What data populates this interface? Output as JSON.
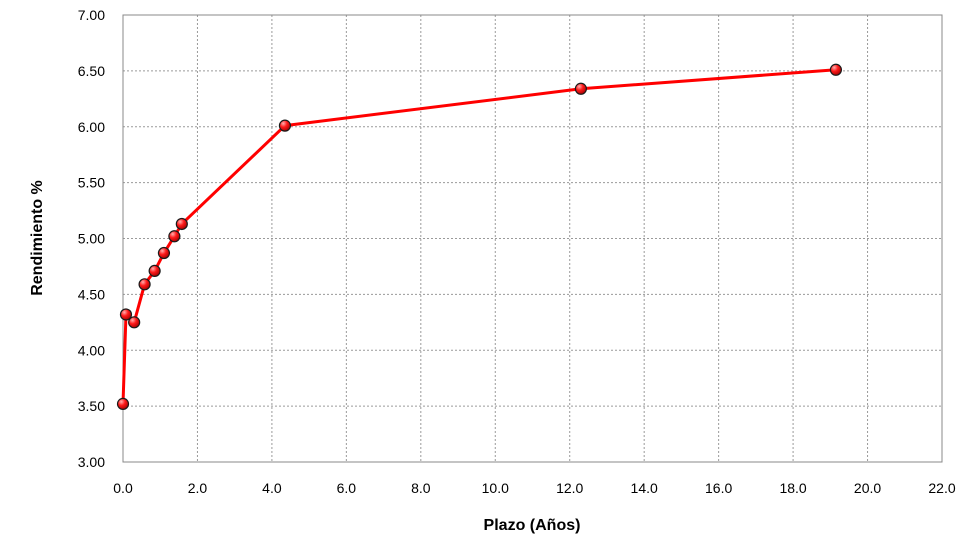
{
  "chart_data": {
    "type": "line",
    "title": "",
    "xlabel": "Plazo (Años)",
    "ylabel": "Rendimiento %",
    "xlim": [
      0,
      22
    ],
    "ylim": [
      3.0,
      7.0
    ],
    "x_ticks": [
      "0.0",
      "2.0",
      "4.0",
      "6.0",
      "8.0",
      "10.0",
      "12.0",
      "14.0",
      "16.0",
      "18.0",
      "20.0",
      "22.0"
    ],
    "y_ticks": [
      "3.00",
      "3.50",
      "4.00",
      "4.50",
      "5.00",
      "5.50",
      "6.00",
      "6.50",
      "7.00"
    ],
    "grid": true,
    "grid_style": "dotted",
    "legend": "none",
    "series": [
      {
        "color": "#ff0000",
        "marker": "circle",
        "points": [
          {
            "x": 0.0,
            "y": 3.52
          },
          {
            "x": 0.08,
            "y": 4.32
          },
          {
            "x": 0.3,
            "y": 4.25
          },
          {
            "x": 0.58,
            "y": 4.59
          },
          {
            "x": 0.85,
            "y": 4.71
          },
          {
            "x": 1.1,
            "y": 4.87
          },
          {
            "x": 1.38,
            "y": 5.02
          },
          {
            "x": 1.58,
            "y": 5.13
          },
          {
            "x": 4.35,
            "y": 6.01
          },
          {
            "x": 12.3,
            "y": 6.34
          },
          {
            "x": 19.15,
            "y": 6.51
          }
        ]
      }
    ]
  }
}
